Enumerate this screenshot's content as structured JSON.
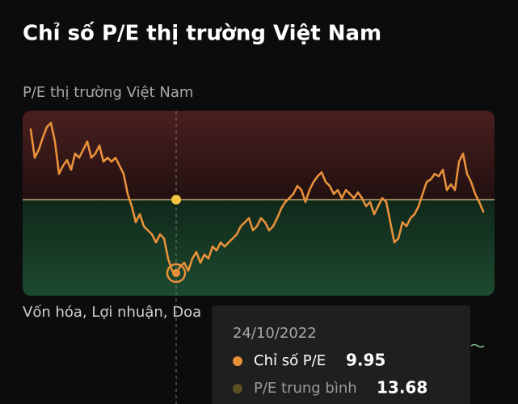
{
  "title": "Chỉ số P/E thị trường Việt Nam",
  "chart_data": {
    "type": "line",
    "subtitle": "P/E thị trường Việt Nam",
    "series": [
      {
        "name": "Chỉ số P/E",
        "color": "#e8913a",
        "values": [
          17.25,
          15.81,
          16.22,
          16.84,
          17.37,
          17.58,
          16.63,
          14.99,
          15.4,
          15.69,
          15.2,
          16.02,
          15.81,
          16.22,
          16.63,
          15.81,
          16.02,
          16.43,
          15.61,
          15.81,
          15.61,
          15.81,
          15.4,
          14.99,
          13.97,
          13.35,
          12.53,
          12.94,
          12.33,
          12.12,
          11.92,
          11.51,
          11.92,
          11.71,
          10.69,
          10.07,
          9.95,
          10.28,
          10.48,
          10.07,
          10.69,
          11.02,
          10.48,
          10.89,
          10.69,
          11.3,
          11.1,
          11.51,
          11.3,
          11.51,
          11.71,
          11.92,
          12.33,
          12.53,
          12.74,
          12.12,
          12.33,
          12.74,
          12.53,
          12.12,
          12.33,
          12.74,
          13.23,
          13.56,
          13.76,
          13.97,
          14.38,
          14.17,
          13.56,
          14.17,
          14.58,
          14.87,
          15.07,
          14.58,
          14.38,
          13.97,
          14.17,
          13.76,
          14.17,
          13.97,
          13.76,
          14.05,
          13.76,
          13.35,
          13.56,
          12.94,
          13.35,
          13.76,
          13.56,
          12.53,
          11.51,
          11.71,
          12.53,
          12.33,
          12.74,
          12.94,
          13.35,
          13.97,
          14.58,
          14.71,
          14.99,
          14.87,
          15.2,
          14.17,
          14.46,
          14.17,
          15.61,
          16.02,
          14.99,
          14.58,
          13.97,
          13.56,
          13.07
        ]
      }
    ],
    "average_line": {
      "name": "P/E trung bình",
      "value": 13.68,
      "color": "#e6c88a",
      "legend_color": "#5c4f22"
    },
    "ylim": [
      8.8,
      18.2
    ],
    "caption": "Vốn hóa, Lợi nhuận, Doa",
    "tooltip": {
      "date": "24/10/2022"
    }
  }
}
